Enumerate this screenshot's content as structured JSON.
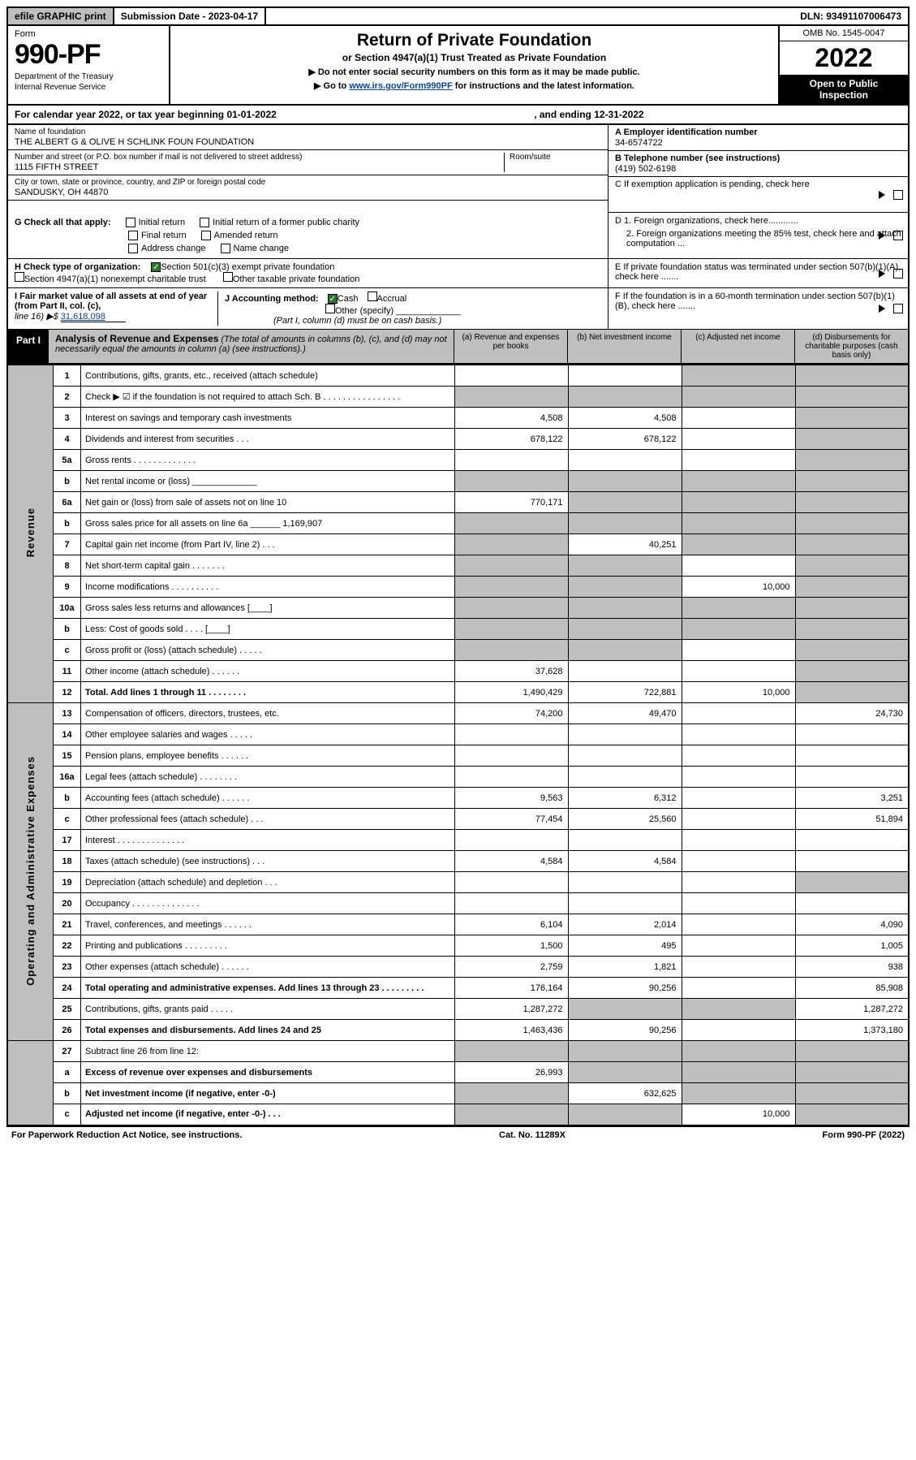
{
  "top": {
    "efile": "efile GRAPHIC print",
    "subm_label": "Submission Date - 2023-04-17",
    "dln": "DLN: 93491107006473"
  },
  "hdr": {
    "form_label": "Form",
    "form_num": "990-PF",
    "dept": "Department of the Treasury",
    "irs": "Internal Revenue Service",
    "title": "Return of Private Foundation",
    "subtitle": "or Section 4947(a)(1) Trust Treated as Private Foundation",
    "note1": "▶ Do not enter social security numbers on this form as it may be made public.",
    "note2_pre": "▶ Go to ",
    "note2_link": "www.irs.gov/Form990PF",
    "note2_post": " for instructions and the latest information.",
    "omb": "OMB No. 1545-0047",
    "year": "2022",
    "open1": "Open to Public",
    "open2": "Inspection"
  },
  "cal": {
    "pre": "For calendar year 2022, or tax year beginning 01-01-2022",
    "mid": ", and ending 12-31-2022"
  },
  "org": {
    "name_lbl": "Name of foundation",
    "name": "THE ALBERT G & OLIVE H SCHLINK FOUN FOUNDATION",
    "addr_lbl": "Number and street (or P.O. box number if mail is not delivered to street address)",
    "room_lbl": "Room/suite",
    "addr": "1115 FIFTH STREET",
    "city_lbl": "City or town, state or province, country, and ZIP or foreign postal code",
    "city": "SANDUSKY, OH  44870",
    "ein_lbl": "A Employer identification number",
    "ein": "34-6574722",
    "tel_lbl": "B Telephone number (see instructions)",
    "tel": "(419) 502-6198",
    "c_lbl": "C If exemption application is pending, check here"
  },
  "g": {
    "lbl": "G Check all that apply:",
    "initial": "Initial return",
    "final": "Final return",
    "addr": "Address change",
    "initial_pc": "Initial return of a former public charity",
    "amended": "Amended return",
    "name": "Name change"
  },
  "h": {
    "lbl": "H Check type of organization:",
    "s501": "Section 501(c)(3) exempt private foundation",
    "s4947": "Section 4947(a)(1) nonexempt charitable trust",
    "other": "Other taxable private foundation"
  },
  "d": {
    "d1": "D 1. Foreign organizations, check here............",
    "d2": "2. Foreign organizations meeting the 85% test, check here and attach computation ...",
    "e": "E  If private foundation status was terminated under section 507(b)(1)(A), check here .......",
    "f": "F  If the foundation is in a 60-month termination under section 507(b)(1)(B), check here ......."
  },
  "i": {
    "lbl": "I Fair market value of all assets at end of year (from Part II, col. (c),",
    "line": "line 16) ▶$",
    "amt": "31,618,098"
  },
  "j": {
    "lbl": "J Accounting method:",
    "cash": "Cash",
    "accrual": "Accrual",
    "other": "Other (specify)",
    "note": "(Part I, column (d) must be on cash basis.)"
  },
  "part1": {
    "lbl": "Part I",
    "title": "Analysis of Revenue and Expenses",
    "note": " (The total of amounts in columns (b), (c), and (d) may not necessarily equal the amounts in column (a) (see instructions).)",
    "ca": "(a)   Revenue and expenses per books",
    "cb": "(b)   Net investment income",
    "cc": "(c)   Adjusted net income",
    "cd": "(d)  Disbursements for charitable purposes (cash basis only)"
  },
  "sec": {
    "rev": "Revenue",
    "oae": "Operating and Administrative Expenses"
  },
  "rows": [
    {
      "n": "1",
      "d": "Contributions, gifts, grants, etc., received (attach schedule)",
      "a": "",
      "b": "",
      "c": "",
      "dd": "",
      "bs": false,
      "cs": true,
      "ds": true
    },
    {
      "n": "2",
      "d": "Check ▶ ☑ if the foundation is not required to attach Sch. B  .  .  .  .  .  .  .  .  .  .  .  .  .  .  .  .",
      "a": "",
      "b": "",
      "c": "",
      "dd": "",
      "as": true,
      "bs": true,
      "cs": true,
      "ds": true
    },
    {
      "n": "3",
      "d": "Interest on savings and temporary cash investments",
      "a": "4,508",
      "b": "4,508",
      "c": "",
      "dd": "",
      "cs": false,
      "ds": true
    },
    {
      "n": "4",
      "d": "Dividends and interest from securities   .  .  .",
      "a": "678,122",
      "b": "678,122",
      "c": "",
      "dd": "",
      "ds": true
    },
    {
      "n": "5a",
      "d": "Gross rents   .  .  .  .  .  .  .  .  .  .  .  .  .",
      "a": "",
      "b": "",
      "c": "",
      "dd": "",
      "ds": true
    },
    {
      "n": "b",
      "d": "Net rental income or (loss)  _____________",
      "a": "",
      "b": "",
      "c": "",
      "dd": "",
      "as": true,
      "bs": true,
      "cs": true,
      "ds": true
    },
    {
      "n": "6a",
      "d": "Net gain or (loss) from sale of assets not on line 10",
      "a": "770,171",
      "b": "",
      "c": "",
      "dd": "",
      "bs": true,
      "cs": true,
      "ds": true
    },
    {
      "n": "b",
      "d": "Gross sales price for all assets on line 6a ______ 1,169,907",
      "a": "",
      "b": "",
      "c": "",
      "dd": "",
      "as": true,
      "bs": true,
      "cs": true,
      "ds": true
    },
    {
      "n": "7",
      "d": "Capital gain net income (from Part IV, line 2)  .  .  .",
      "a": "",
      "b": "40,251",
      "c": "",
      "dd": "",
      "as": true,
      "cs": true,
      "ds": true
    },
    {
      "n": "8",
      "d": "Net short-term capital gain  .  .  .  .  .  .  .",
      "a": "",
      "b": "",
      "c": "",
      "dd": "",
      "as": true,
      "bs": true,
      "ds": true
    },
    {
      "n": "9",
      "d": "Income modifications .  .  .  .  .  .  .  .  .  .",
      "a": "",
      "b": "",
      "c": "10,000",
      "dd": "",
      "as": true,
      "bs": true,
      "ds": true
    },
    {
      "n": "10a",
      "d": "Gross sales less returns and allowances  [____]",
      "a": "",
      "b": "",
      "c": "",
      "dd": "",
      "as": true,
      "bs": true,
      "cs": true,
      "ds": true
    },
    {
      "n": "b",
      "d": "Less: Cost of goods sold   .  .  .  .  [____]",
      "a": "",
      "b": "",
      "c": "",
      "dd": "",
      "as": true,
      "bs": true,
      "cs": true,
      "ds": true
    },
    {
      "n": "c",
      "d": "Gross profit or (loss) (attach schedule)  .  .  .  .  .",
      "a": "",
      "b": "",
      "c": "",
      "dd": "",
      "as": true,
      "bs": true,
      "ds": true
    },
    {
      "n": "11",
      "d": "Other income (attach schedule)   .  .  .  .  .  .",
      "a": "37,628",
      "b": "",
      "c": "",
      "dd": "",
      "ds": true
    },
    {
      "n": "12",
      "d": "Total. Add lines 1 through 11   .  .  .  .  .  .  .  .",
      "bold": true,
      "a": "1,490,429",
      "b": "722,881",
      "c": "10,000",
      "dd": "",
      "ds": true
    }
  ],
  "exp": [
    {
      "n": "13",
      "d": "Compensation of officers, directors, trustees, etc.",
      "a": "74,200",
      "b": "49,470",
      "c": "",
      "dd": "24,730"
    },
    {
      "n": "14",
      "d": "Other employee salaries and wages  .  .  .  .  .",
      "a": "",
      "b": "",
      "c": "",
      "dd": ""
    },
    {
      "n": "15",
      "d": "Pension plans, employee benefits  .  .  .  .  .  .",
      "a": "",
      "b": "",
      "c": "",
      "dd": ""
    },
    {
      "n": "16a",
      "d": "Legal fees (attach schedule) .  .  .  .  .  .  .  .",
      "a": "",
      "b": "",
      "c": "",
      "dd": ""
    },
    {
      "n": "b",
      "d": "Accounting fees (attach schedule) .  .  .  .  .  .",
      "a": "9,563",
      "b": "6,312",
      "c": "",
      "dd": "3,251"
    },
    {
      "n": "c",
      "d": "Other professional fees (attach schedule)  .  .  .",
      "a": "77,454",
      "b": "25,560",
      "c": "",
      "dd": "51,894"
    },
    {
      "n": "17",
      "d": "Interest  .  .  .  .  .  .  .  .  .  .  .  .  .  .",
      "a": "",
      "b": "",
      "c": "",
      "dd": ""
    },
    {
      "n": "18",
      "d": "Taxes (attach schedule) (see instructions)  .  .  .",
      "a": "4,584",
      "b": "4,584",
      "c": "",
      "dd": ""
    },
    {
      "n": "19",
      "d": "Depreciation (attach schedule) and depletion  .  .  .",
      "a": "",
      "b": "",
      "c": "",
      "dd": "",
      "ds": true
    },
    {
      "n": "20",
      "d": "Occupancy .  .  .  .  .  .  .  .  .  .  .  .  .  .",
      "a": "",
      "b": "",
      "c": "",
      "dd": ""
    },
    {
      "n": "21",
      "d": "Travel, conferences, and meetings .  .  .  .  .  .",
      "a": "6,104",
      "b": "2,014",
      "c": "",
      "dd": "4,090"
    },
    {
      "n": "22",
      "d": "Printing and publications .  .  .  .  .  .  .  .  .",
      "a": "1,500",
      "b": "495",
      "c": "",
      "dd": "1,005"
    },
    {
      "n": "23",
      "d": "Other expenses (attach schedule) .  .  .  .  .  .",
      "a": "2,759",
      "b": "1,821",
      "c": "",
      "dd": "938"
    },
    {
      "n": "24",
      "d": "Total operating and administrative expenses. Add lines 13 through 23   .  .  .  .  .  .  .  .  .",
      "bold": true,
      "a": "176,164",
      "b": "90,256",
      "c": "",
      "dd": "85,908"
    },
    {
      "n": "25",
      "d": "Contributions, gifts, grants paid   .  .  .  .  .",
      "a": "1,287,272",
      "b": "",
      "c": "",
      "dd": "1,287,272",
      "bs": true,
      "cs": true
    },
    {
      "n": "26",
      "d": "Total expenses and disbursements. Add lines 24 and 25",
      "bold": true,
      "a": "1,463,436",
      "b": "90,256",
      "c": "",
      "dd": "1,373,180"
    }
  ],
  "bottom": [
    {
      "n": "27",
      "d": "Subtract line 26 from line 12:",
      "a": "",
      "b": "",
      "c": "",
      "dd": "",
      "as": true,
      "bs": true,
      "cs": true,
      "ds": true
    },
    {
      "n": "a",
      "d": "Excess of revenue over expenses and disbursements",
      "bold": true,
      "a": "26,993",
      "b": "",
      "c": "",
      "dd": "",
      "bs": true,
      "cs": true,
      "ds": true
    },
    {
      "n": "b",
      "d": "Net investment income (if negative, enter -0-)",
      "bold": true,
      "a": "",
      "b": "632,625",
      "c": "",
      "dd": "",
      "as": true,
      "cs": true,
      "ds": true
    },
    {
      "n": "c",
      "d": "Adjusted net income (if negative, enter -0-)  .  .  .",
      "bold": true,
      "a": "",
      "b": "",
      "c": "10,000",
      "dd": "",
      "as": true,
      "bs": true,
      "ds": true
    }
  ],
  "foot": {
    "left": "For Paperwork Reduction Act Notice, see instructions.",
    "mid": "Cat. No. 11289X",
    "right": "Form 990-PF (2022)"
  }
}
